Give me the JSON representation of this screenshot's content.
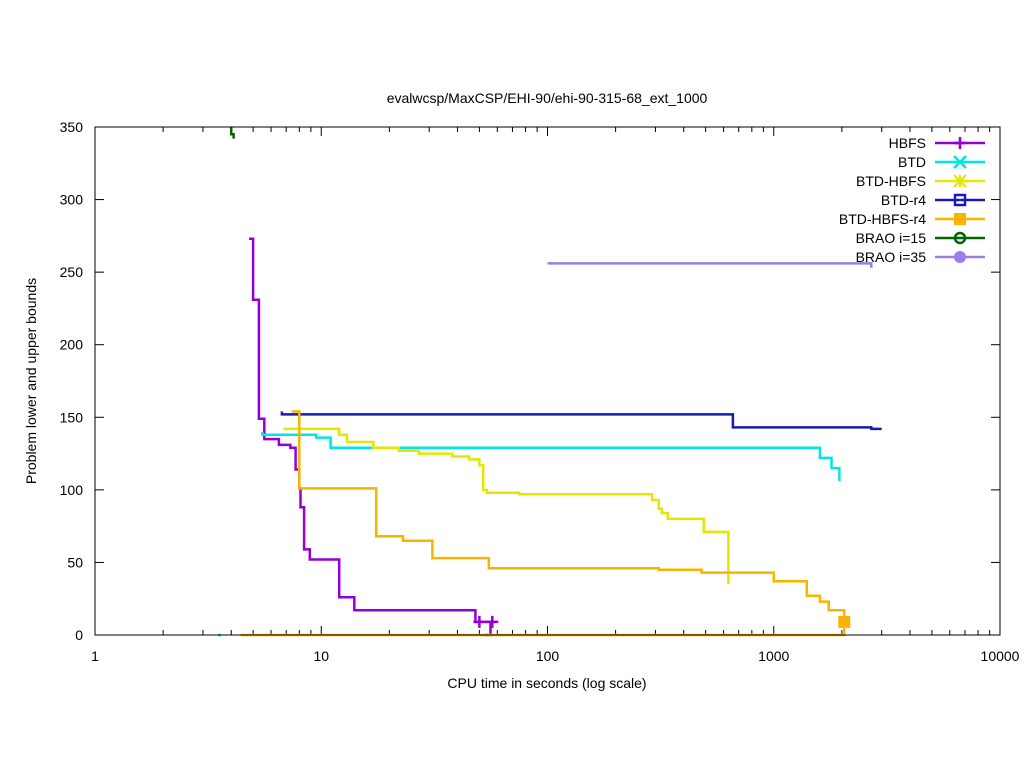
{
  "chart_data": {
    "type": "line",
    "title": "evalwcsp/MaxCSP/EHI-90/ehi-90-315-68_ext_1000",
    "xlabel": "CPU time in seconds (log scale)",
    "ylabel": "Problem lower and upper bounds",
    "xscale": "log",
    "xlim": [
      1,
      10000
    ],
    "ylim": [
      0,
      350
    ],
    "x_ticks": [
      1,
      10,
      100,
      1000,
      10000
    ],
    "x_tick_labels": [
      "1",
      "10",
      "100",
      "1000",
      "10000"
    ],
    "y_ticks": [
      0,
      50,
      100,
      150,
      200,
      250,
      300,
      350
    ],
    "y_tick_labels": [
      "0",
      "50",
      "100",
      "150",
      "200",
      "250",
      "300",
      "350"
    ],
    "grid": false,
    "legend_position": "top-right",
    "series": [
      {
        "name": "HBFS",
        "color": "#9400d3",
        "marker": "plus",
        "upper": [
          [
            4.8,
            273
          ],
          [
            5.0,
            273
          ],
          [
            5.0,
            231
          ],
          [
            5.3,
            231
          ],
          [
            5.3,
            149
          ],
          [
            5.6,
            149
          ],
          [
            5.6,
            135
          ],
          [
            6.5,
            135
          ],
          [
            6.5,
            131
          ],
          [
            7.3,
            131
          ],
          [
            7.3,
            129
          ],
          [
            7.7,
            129
          ],
          [
            7.7,
            114
          ],
          [
            8.0,
            114
          ],
          [
            8.0,
            101
          ],
          [
            8.1,
            101
          ],
          [
            8.1,
            88
          ],
          [
            8.4,
            88
          ],
          [
            8.4,
            59
          ],
          [
            8.9,
            59
          ],
          [
            8.9,
            52
          ],
          [
            12.0,
            52
          ],
          [
            12.0,
            26
          ],
          [
            14.0,
            26
          ],
          [
            14.0,
            17
          ],
          [
            48,
            17
          ],
          [
            48,
            9
          ],
          [
            57,
            9
          ]
        ],
        "lower": [
          [
            53,
            0
          ],
          [
            56,
            0
          ],
          [
            56,
            9
          ]
        ],
        "end_markers": [
          [
            50,
            9
          ],
          [
            57,
            9
          ]
        ]
      },
      {
        "name": "BTD",
        "color": "#00e5e5",
        "marker": "cross",
        "upper": [
          [
            5.5,
            140
          ],
          [
            5.5,
            138
          ],
          [
            9.5,
            138
          ],
          [
            9.5,
            136
          ],
          [
            11,
            136
          ],
          [
            11,
            129
          ],
          [
            1600,
            129
          ],
          [
            1600,
            122
          ],
          [
            1800,
            122
          ],
          [
            1800,
            115
          ],
          [
            1950,
            115
          ],
          [
            1950,
            106
          ]
        ],
        "lower": [
          [
            3.5,
            0
          ],
          [
            3.6,
            0
          ]
        ]
      },
      {
        "name": "BTD-HBFS",
        "color": "#e5e500",
        "marker": "star",
        "upper": [
          [
            6.8,
            142
          ],
          [
            12,
            142
          ],
          [
            12,
            138
          ],
          [
            13,
            138
          ],
          [
            13,
            133
          ],
          [
            17,
            133
          ],
          [
            17,
            129
          ],
          [
            22,
            129
          ],
          [
            22,
            127
          ],
          [
            27,
            127
          ],
          [
            27,
            125
          ],
          [
            38,
            125
          ],
          [
            38,
            123
          ],
          [
            45,
            123
          ],
          [
            45,
            121
          ],
          [
            50,
            121
          ],
          [
            50,
            117
          ],
          [
            52,
            117
          ],
          [
            52,
            100
          ],
          [
            54,
            100
          ],
          [
            54,
            98
          ],
          [
            75,
            98
          ],
          [
            75,
            97
          ],
          [
            290,
            97
          ],
          [
            290,
            93
          ],
          [
            310,
            93
          ],
          [
            310,
            87
          ],
          [
            320,
            87
          ],
          [
            320,
            84
          ],
          [
            340,
            84
          ],
          [
            340,
            80
          ],
          [
            490,
            80
          ],
          [
            490,
            71
          ],
          [
            630,
            71
          ],
          [
            630,
            35
          ]
        ],
        "lower": []
      },
      {
        "name": "BTD-r4",
        "color": "#1a1ab3",
        "marker": "square",
        "upper": [
          [
            6.7,
            154
          ],
          [
            6.7,
            152
          ],
          [
            660,
            152
          ],
          [
            660,
            143
          ],
          [
            2700,
            143
          ],
          [
            2700,
            142
          ],
          [
            3000,
            142
          ]
        ],
        "lower": []
      },
      {
        "name": "BTD-HBFS-r4",
        "color": "#f8b500",
        "marker": "filled-square",
        "upper": [
          [
            7.4,
            154
          ],
          [
            8.0,
            154
          ],
          [
            8.0,
            101
          ],
          [
            17.5,
            101
          ],
          [
            17.5,
            68
          ],
          [
            23,
            68
          ],
          [
            23,
            65
          ],
          [
            31,
            65
          ],
          [
            31,
            53
          ],
          [
            55,
            53
          ],
          [
            55,
            46
          ],
          [
            310,
            46
          ],
          [
            310,
            45
          ],
          [
            480,
            45
          ],
          [
            480,
            43
          ],
          [
            1000,
            43
          ],
          [
            1000,
            37
          ],
          [
            1400,
            37
          ],
          [
            1400,
            27
          ],
          [
            1600,
            27
          ],
          [
            1600,
            23
          ],
          [
            1750,
            23
          ],
          [
            1750,
            17
          ],
          [
            2050,
            17
          ],
          [
            2050,
            9
          ]
        ],
        "lower": [
          [
            4.4,
            0
          ],
          [
            2050,
            0
          ],
          [
            2050,
            9
          ]
        ],
        "end_markers": [
          [
            2050,
            9
          ]
        ]
      },
      {
        "name": "BRAO i=15",
        "color": "#006400",
        "marker": "circle",
        "upper": [
          [
            4.0,
            350
          ],
          [
            4.0,
            345
          ],
          [
            4.1,
            345
          ],
          [
            4.1,
            342
          ]
        ],
        "lower": []
      },
      {
        "name": "BRAO i=35",
        "color": "#9b7fe8",
        "marker": "filled-circle",
        "upper": [
          [
            100,
            256
          ],
          [
            2700,
            256
          ],
          [
            2700,
            253
          ]
        ],
        "lower": []
      }
    ]
  }
}
